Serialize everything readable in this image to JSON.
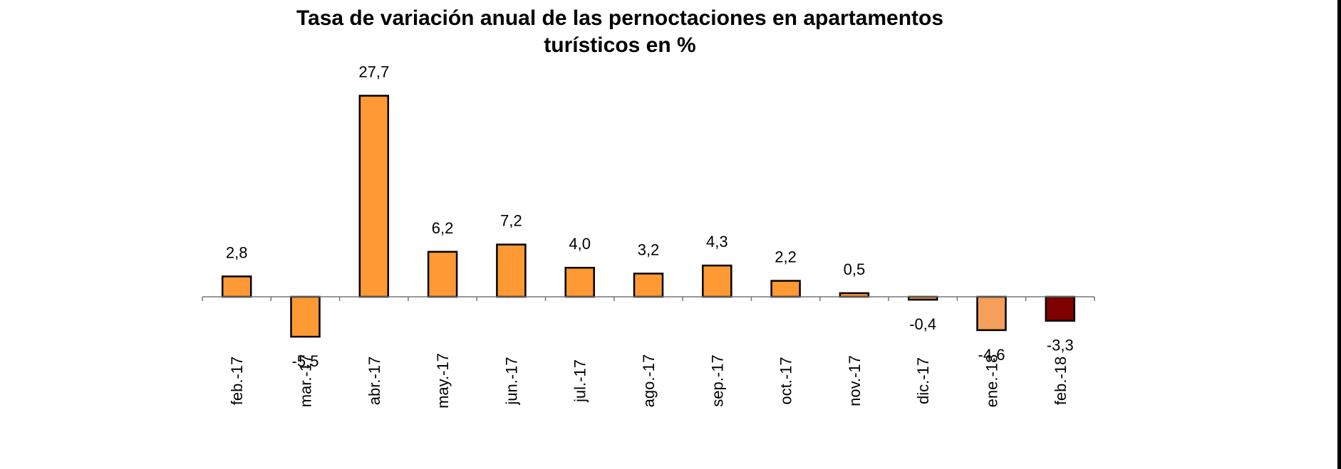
{
  "chart_data": {
    "type": "bar",
    "title_lines": [
      "Tasa de variación anual de las pernoctaciones en apartamentos",
      "turísticos en %"
    ],
    "xlabel": "",
    "ylabel": "",
    "categories": [
      "feb.-17",
      "mar.-17",
      "abr.-17",
      "may.-17",
      "jun.-17",
      "jul.-17",
      "ago.-17",
      "sep.-17",
      "oct.-17",
      "nov.-17",
      "dic.-17",
      "ene.-18",
      "feb.-18"
    ],
    "values": [
      2.8,
      -5.5,
      27.7,
      6.2,
      7.2,
      4.0,
      3.2,
      4.3,
      2.2,
      0.5,
      -0.4,
      -4.6,
      -3.3
    ],
    "value_labels": [
      "2,8",
      "-5,5",
      "27,7",
      "6,2",
      "7,2",
      "4,0",
      "3,2",
      "4,3",
      "2,2",
      "0,5",
      "-0,4",
      "-4,6",
      "-3,3"
    ],
    "bar_colors": [
      "#FF9933",
      "#FF9933",
      "#FF9933",
      "#FF9933",
      "#FF9933",
      "#FF9933",
      "#FF9933",
      "#FF9933",
      "#FF9933",
      "#FF9933",
      "#FF9933",
      "#F5A05A",
      "#800000"
    ],
    "ylim": [
      -10,
      30
    ],
    "grid": false,
    "legend": "none"
  }
}
